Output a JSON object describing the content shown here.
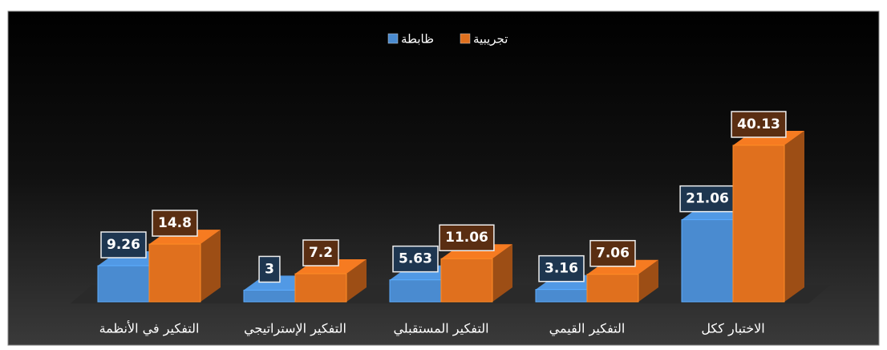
{
  "chart_data": {
    "type": "bar3d",
    "categories": [
      "التفكير في الأنظمة",
      "التفكير الإستراتيجي",
      "التفكير المستقبلي",
      "التفكير القيمي",
      "الاختبار ككل"
    ],
    "series": [
      {
        "name": "ظابطة",
        "color": "#4a8bd0",
        "values": [
          9.26,
          3,
          5.63,
          3.16,
          21.06
        ]
      },
      {
        "name": "تجريبية",
        "color": "#e0701e",
        "values": [
          14.8,
          7.2,
          11.06,
          7.06,
          40.13
        ]
      }
    ],
    "legend": "top"
  }
}
